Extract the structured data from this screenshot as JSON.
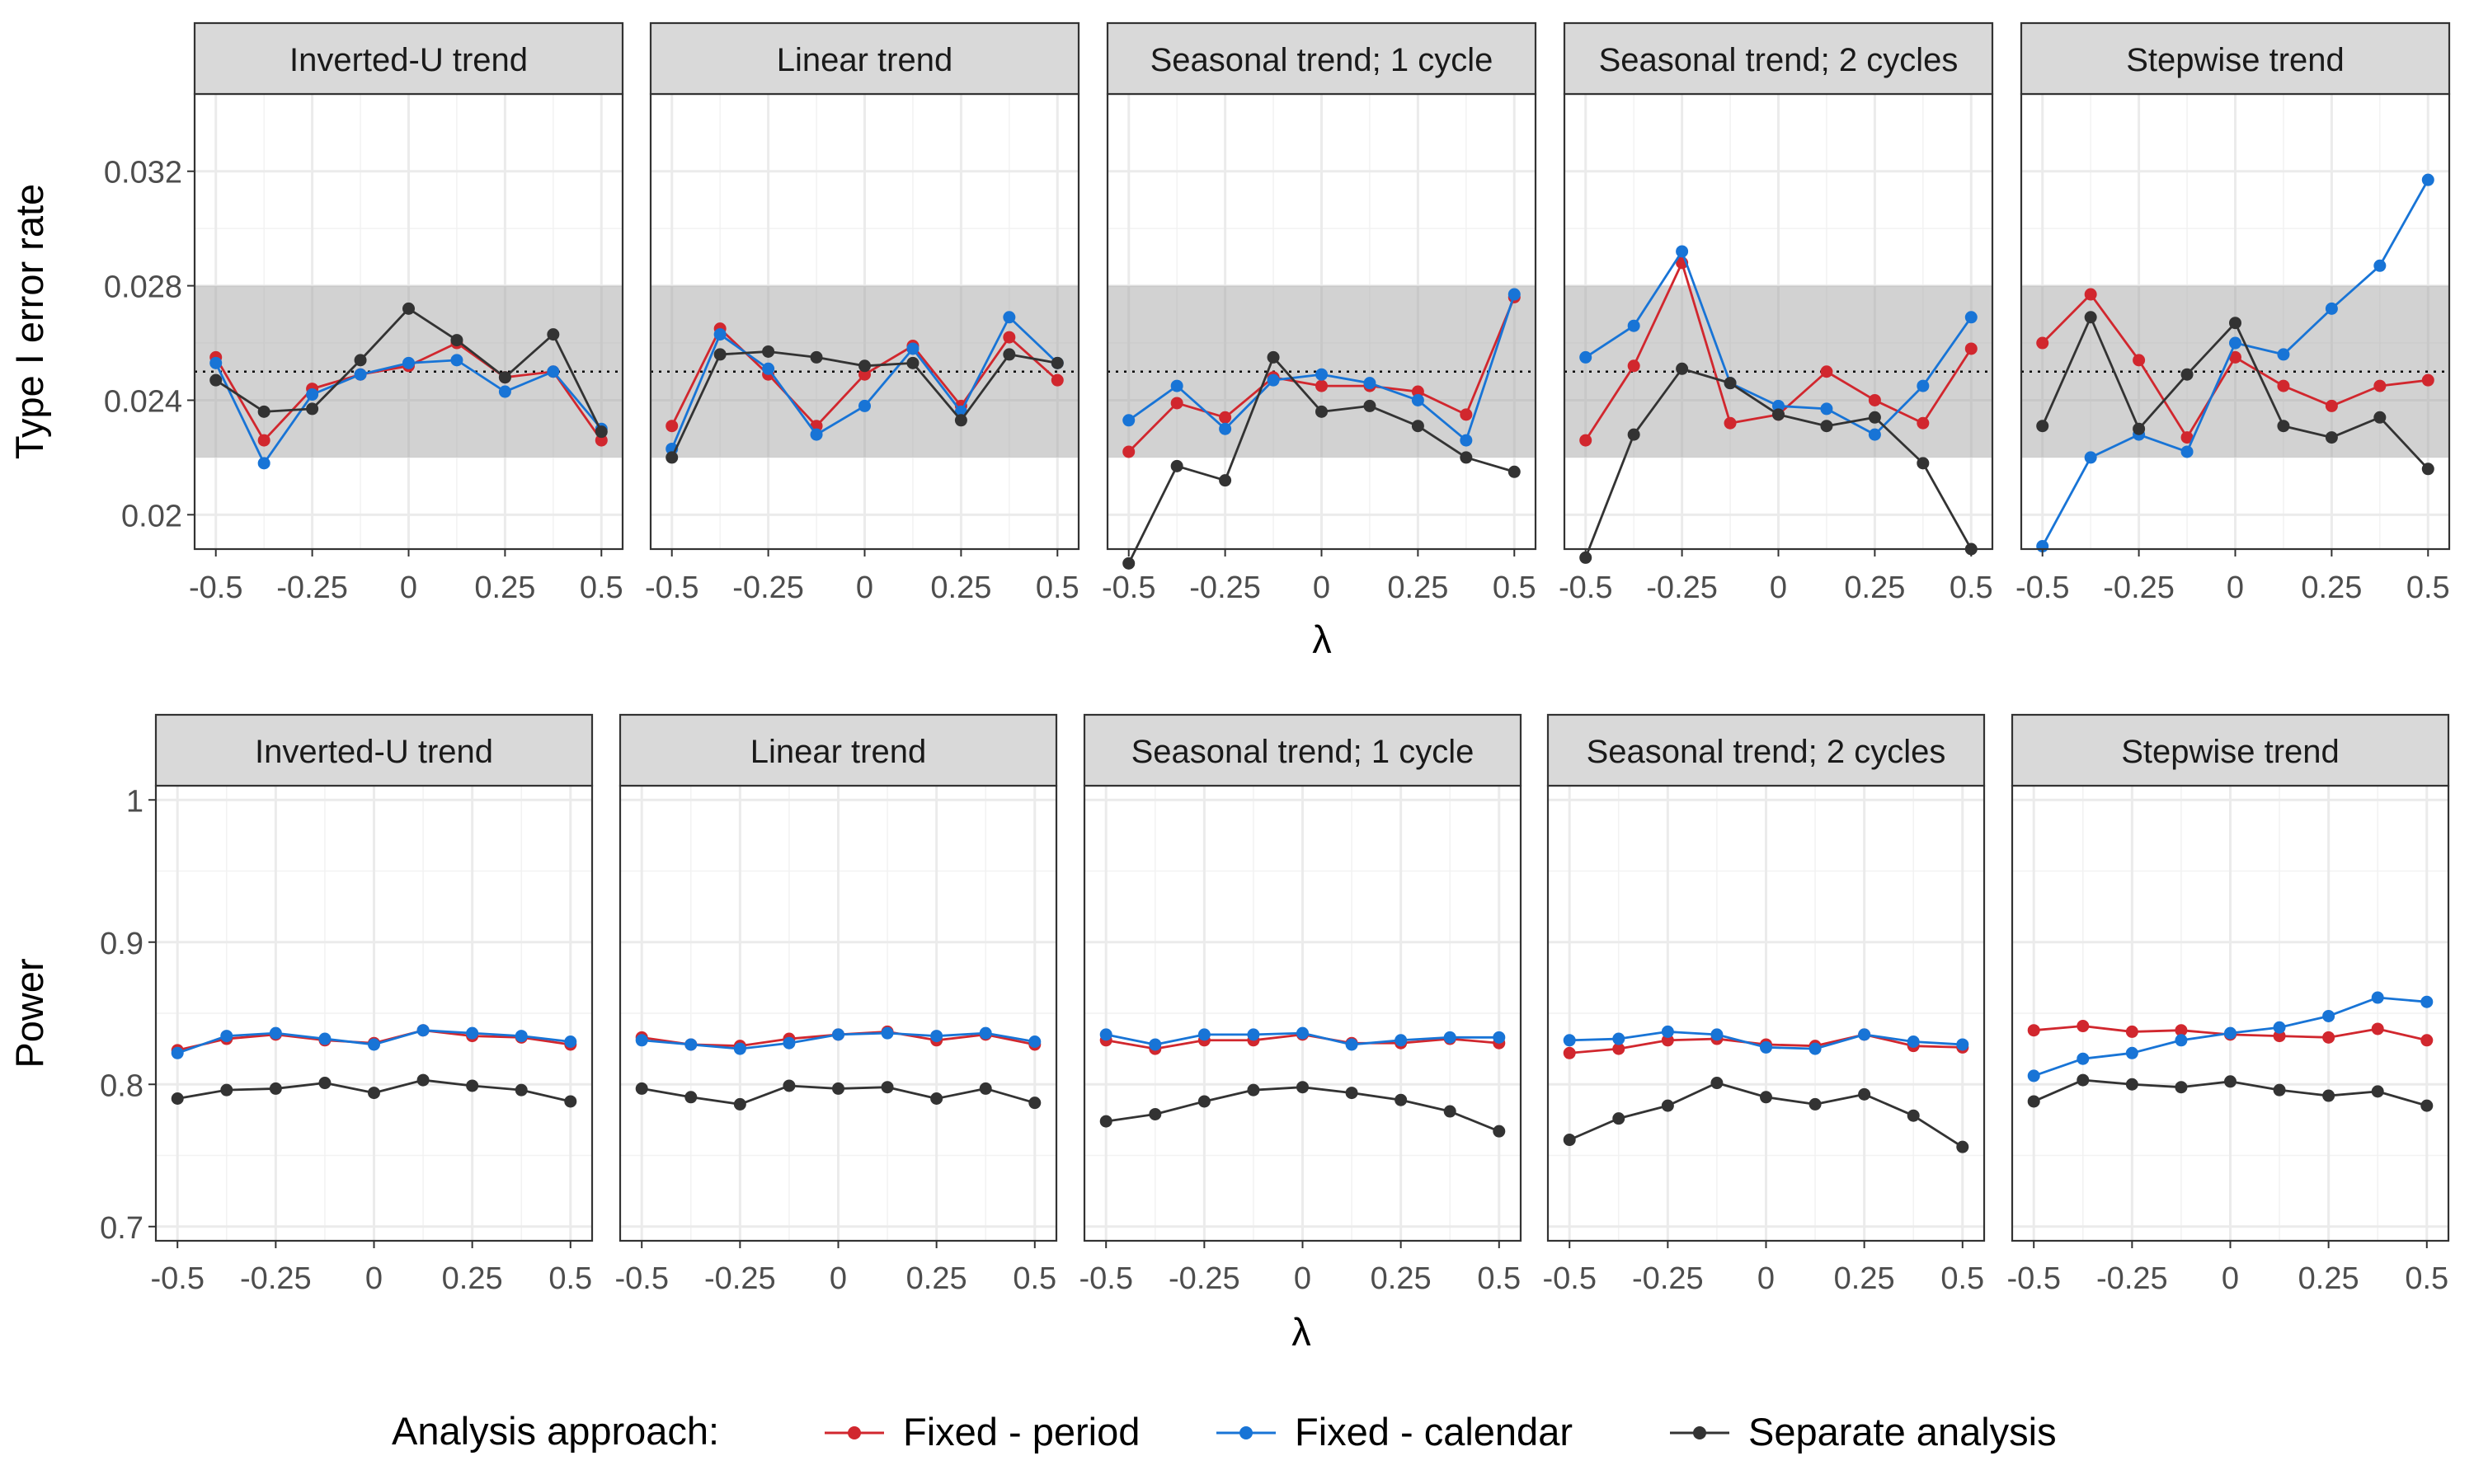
{
  "series_styles": [
    {
      "name": "Fixed - period",
      "color": "#d1272e"
    },
    {
      "name": "Fixed - calendar",
      "color": "#1874d6"
    },
    {
      "name": "Separate analysis",
      "color": "#333333"
    }
  ],
  "legend": {
    "title": "Analysis approach:",
    "placement": "bottom"
  },
  "chart_data": [
    {
      "type": "line",
      "facet_row": "top",
      "ylabel": "Type I error rate",
      "xlabel": "λ",
      "ylim": [
        0.0188,
        0.0347
      ],
      "xlim": [
        -0.555,
        0.555
      ],
      "yticks": [
        0.02,
        0.024,
        0.028,
        0.032
      ],
      "ytick_labels": [
        "0.02",
        "0.024",
        "0.028",
        "0.032"
      ],
      "xticks": [
        -0.5,
        -0.25,
        0,
        0.25,
        0.5
      ],
      "xtick_labels": [
        "-0.5",
        "-0.25",
        "0",
        "0.25",
        "0.5"
      ],
      "reference_band": [
        0.022,
        0.028
      ],
      "reference_line": 0.025,
      "grid": true,
      "x": [
        -0.5,
        -0.375,
        -0.25,
        -0.125,
        0,
        0.125,
        0.25,
        0.375,
        0.5
      ],
      "panels": [
        {
          "title": "Inverted-U trend",
          "series": [
            {
              "name": "Fixed - period",
              "values": [
                0.0255,
                0.0226,
                0.0244,
                0.0249,
                0.0252,
                0.026,
                0.0248,
                0.025,
                0.0226
              ]
            },
            {
              "name": "Fixed - calendar",
              "values": [
                0.0253,
                0.0218,
                0.0242,
                0.0249,
                0.0253,
                0.0254,
                0.0243,
                0.025,
                0.023
              ]
            },
            {
              "name": "Separate analysis",
              "values": [
                0.0247,
                0.0236,
                0.0237,
                0.0254,
                0.0272,
                0.0261,
                0.0248,
                0.0263,
                0.0229
              ]
            }
          ]
        },
        {
          "title": "Linear trend",
          "series": [
            {
              "name": "Fixed - period",
              "values": [
                0.0231,
                0.0265,
                0.0249,
                0.0231,
                0.0249,
                0.0259,
                0.0238,
                0.0262,
                0.0247
              ]
            },
            {
              "name": "Fixed - calendar",
              "values": [
                0.0223,
                0.0263,
                0.0251,
                0.0228,
                0.0238,
                0.0258,
                0.0236,
                0.0269,
                0.0253
              ]
            },
            {
              "name": "Separate analysis",
              "values": [
                0.022,
                0.0256,
                0.0257,
                0.0255,
                0.0252,
                0.0253,
                0.0233,
                0.0256,
                0.0253
              ]
            }
          ]
        },
        {
          "title": "Seasonal trend; 1 cycle",
          "series": [
            {
              "name": "Fixed - period",
              "values": [
                0.0222,
                0.0239,
                0.0234,
                0.0248,
                0.0245,
                0.0245,
                0.0243,
                0.0235,
                0.0276
              ]
            },
            {
              "name": "Fixed - calendar",
              "values": [
                0.0233,
                0.0245,
                0.023,
                0.0247,
                0.0249,
                0.0246,
                0.024,
                0.0226,
                0.0277
              ]
            },
            {
              "name": "Separate analysis",
              "values": [
                0.0183,
                0.0217,
                0.0212,
                0.0255,
                0.0236,
                0.0238,
                0.0231,
                0.022,
                0.0215
              ]
            }
          ]
        },
        {
          "title": "Seasonal trend; 2 cycles",
          "series": [
            {
              "name": "Fixed - period",
              "values": [
                0.0226,
                0.0252,
                0.0288,
                0.0232,
                0.0235,
                0.025,
                0.024,
                0.0232,
                0.0258
              ]
            },
            {
              "name": "Fixed - calendar",
              "values": [
                0.0255,
                0.0266,
                0.0292,
                0.0246,
                0.0238,
                0.0237,
                0.0228,
                0.0245,
                0.0269
              ]
            },
            {
              "name": "Separate analysis",
              "values": [
                0.0185,
                0.0228,
                0.0251,
                0.0246,
                0.0235,
                0.0231,
                0.0234,
                0.0218,
                0.0188
              ]
            }
          ]
        },
        {
          "title": "Stepwise trend",
          "series": [
            {
              "name": "Fixed - period",
              "values": [
                0.026,
                0.0277,
                0.0254,
                0.0227,
                0.0255,
                0.0245,
                0.0238,
                0.0245,
                0.0247
              ]
            },
            {
              "name": "Fixed - calendar",
              "values": [
                0.0189,
                0.022,
                0.0228,
                0.0222,
                0.026,
                0.0256,
                0.0272,
                0.0287,
                0.0317
              ]
            },
            {
              "name": "Separate analysis",
              "values": [
                0.0231,
                0.0269,
                0.023,
                0.0249,
                0.0267,
                0.0231,
                0.0227,
                0.0234,
                0.0216
              ]
            }
          ]
        }
      ]
    },
    {
      "type": "line",
      "facet_row": "bottom",
      "ylabel": "Power",
      "xlabel": "λ",
      "ylim": [
        0.69,
        1.01
      ],
      "xlim": [
        -0.555,
        0.555
      ],
      "yticks": [
        0.7,
        0.8,
        0.9,
        1.0
      ],
      "ytick_labels": [
        "0.7",
        "0.8",
        "0.9",
        "1"
      ],
      "xticks": [
        -0.5,
        -0.25,
        0,
        0.25,
        0.5
      ],
      "xtick_labels": [
        "-0.5",
        "-0.25",
        "0",
        "0.25",
        "0.5"
      ],
      "grid": true,
      "x": [
        -0.5,
        -0.375,
        -0.25,
        -0.125,
        0,
        0.125,
        0.25,
        0.375,
        0.5
      ],
      "panels": [
        {
          "title": "Inverted-U trend",
          "series": [
            {
              "name": "Fixed - period",
              "values": [
                0.824,
                0.832,
                0.835,
                0.831,
                0.829,
                0.838,
                0.834,
                0.833,
                0.828
              ]
            },
            {
              "name": "Fixed - calendar",
              "values": [
                0.822,
                0.834,
                0.836,
                0.832,
                0.828,
                0.838,
                0.836,
                0.834,
                0.83
              ]
            },
            {
              "name": "Separate analysis",
              "values": [
                0.79,
                0.796,
                0.797,
                0.801,
                0.794,
                0.803,
                0.799,
                0.796,
                0.788
              ]
            }
          ]
        },
        {
          "title": "Linear trend",
          "series": [
            {
              "name": "Fixed - period",
              "values": [
                0.833,
                0.828,
                0.827,
                0.832,
                0.835,
                0.837,
                0.831,
                0.835,
                0.828
              ]
            },
            {
              "name": "Fixed - calendar",
              "values": [
                0.831,
                0.828,
                0.825,
                0.829,
                0.835,
                0.836,
                0.834,
                0.836,
                0.83
              ]
            },
            {
              "name": "Separate analysis",
              "values": [
                0.797,
                0.791,
                0.786,
                0.799,
                0.797,
                0.798,
                0.79,
                0.797,
                0.787
              ]
            }
          ]
        },
        {
          "title": "Seasonal trend; 1 cycle",
          "series": [
            {
              "name": "Fixed - period",
              "values": [
                0.831,
                0.825,
                0.831,
                0.831,
                0.835,
                0.829,
                0.829,
                0.832,
                0.829
              ]
            },
            {
              "name": "Fixed - calendar",
              "values": [
                0.835,
                0.828,
                0.835,
                0.835,
                0.836,
                0.828,
                0.831,
                0.833,
                0.833
              ]
            },
            {
              "name": "Separate analysis",
              "values": [
                0.774,
                0.779,
                0.788,
                0.796,
                0.798,
                0.794,
                0.789,
                0.781,
                0.767
              ]
            }
          ]
        },
        {
          "title": "Seasonal trend; 2 cycles",
          "series": [
            {
              "name": "Fixed - period",
              "values": [
                0.822,
                0.825,
                0.831,
                0.832,
                0.828,
                0.827,
                0.835,
                0.827,
                0.826
              ]
            },
            {
              "name": "Fixed - calendar",
              "values": [
                0.831,
                0.832,
                0.837,
                0.835,
                0.826,
                0.825,
                0.835,
                0.83,
                0.828
              ]
            },
            {
              "name": "Separate analysis",
              "values": [
                0.761,
                0.776,
                0.785,
                0.801,
                0.791,
                0.786,
                0.793,
                0.778,
                0.756
              ]
            }
          ]
        },
        {
          "title": "Stepwise trend",
          "series": [
            {
              "name": "Fixed - period",
              "values": [
                0.838,
                0.841,
                0.837,
                0.838,
                0.835,
                0.834,
                0.833,
                0.839,
                0.831
              ]
            },
            {
              "name": "Fixed - calendar",
              "values": [
                0.806,
                0.818,
                0.822,
                0.831,
                0.836,
                0.84,
                0.848,
                0.861,
                0.858
              ]
            },
            {
              "name": "Separate analysis",
              "values": [
                0.788,
                0.803,
                0.8,
                0.798,
                0.802,
                0.796,
                0.792,
                0.795,
                0.785
              ]
            }
          ]
        }
      ]
    }
  ]
}
